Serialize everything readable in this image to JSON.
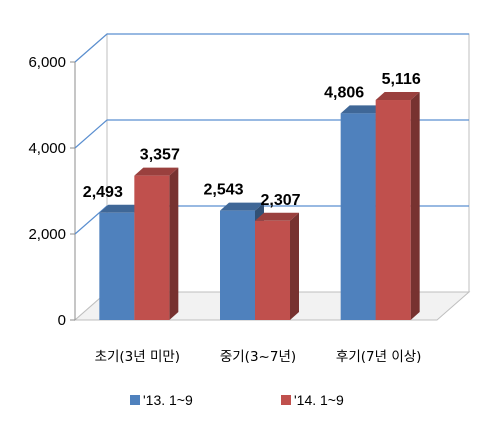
{
  "chart_data": {
    "type": "bar",
    "categories": [
      "초기(3년 미만)",
      "중기(3~7년)",
      "후기(7년 이상)"
    ],
    "series": [
      {
        "name": "'13. 1~9",
        "values": [
          2493,
          2543,
          4806
        ],
        "labels": [
          "2,493",
          "2,543",
          "4,806"
        ],
        "color": "#4f81bd"
      },
      {
        "name": "'14. 1~9",
        "values": [
          3357,
          2307,
          5116
        ],
        "labels": [
          "3,357",
          "2,307",
          "5,116"
        ],
        "color": "#c0504d"
      }
    ],
    "yticks": [
      "0",
      "2,000",
      "4,000",
      "6,000"
    ],
    "ylim": [
      0,
      6000
    ],
    "grid": true,
    "legend": "bottom",
    "gridline_color": "#5b8fd0"
  }
}
